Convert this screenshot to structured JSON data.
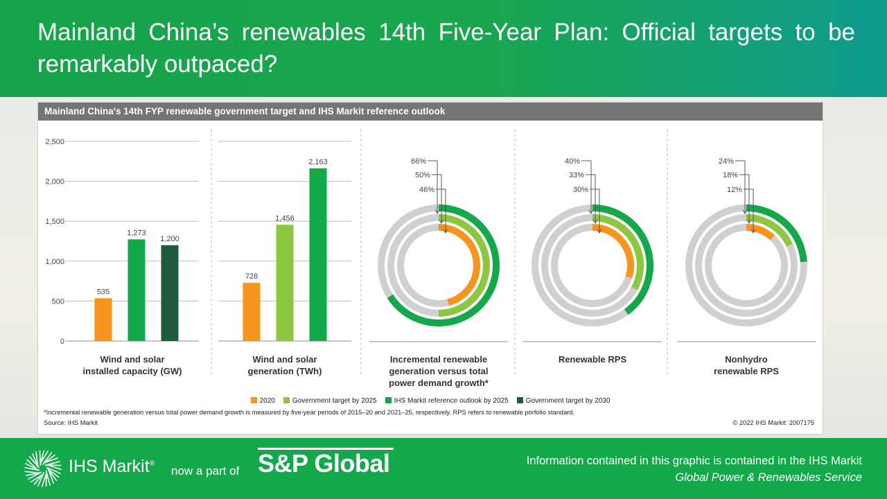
{
  "header": {
    "title": "Mainland China’s renewables 14th Five-Year Plan: Official targets to be remarkably outpaced?"
  },
  "card": {
    "title": "Mainland China's 14th FYP renewable government target and IHS Markit reference outlook",
    "footnote": "*Incremental renewable generation versus total power demand growth is measured by five-year periods of 2015–20 and 2021–25, respectively. RPS refers to renewable porfolio standard.",
    "source": "Source: IHS Markit",
    "copyright": "© 2022 IHS Markit: 2007175"
  },
  "colors": {
    "orange": "#f7941d",
    "lightgreen": "#8dc63f",
    "green": "#13a84a",
    "darkgreen": "#1f5a3e",
    "ringbg": "#d0d0d0"
  },
  "chart_data": {
    "type": "bar",
    "y_ticks": [
      "2,500",
      "2,000",
      "1,500",
      "1,000",
      "500",
      "0"
    ],
    "ylim": [
      0,
      2500
    ],
    "legend": [
      {
        "label": "2020",
        "color": "#f7941d"
      },
      {
        "label": "Government target by 2025",
        "color": "#8dc63f"
      },
      {
        "label": "IHS Markit reference outlook by 2025",
        "color": "#13a84a"
      },
      {
        "label": "Government target by 2030",
        "color": "#1f5a3e"
      }
    ],
    "bar_groups": [
      {
        "label_lines": [
          "Wind and solar",
          "installed capacity (GW)"
        ],
        "bars": [
          {
            "series": "2020",
            "value": 535,
            "label": "535",
            "color": "#f7941d"
          },
          {
            "series": "IHS Markit reference outlook by 2025",
            "value": 1273,
            "label": "1,273",
            "color": "#13a84a"
          },
          {
            "series": "Government target by 2030",
            "value": 1200,
            "label": "1,200",
            "color": "#1f5a3e"
          }
        ]
      },
      {
        "label_lines": [
          "Wind and solar",
          "generation (TWh)"
        ],
        "bars": [
          {
            "series": "2020",
            "value": 728,
            "label": "728",
            "color": "#f7941d"
          },
          {
            "series": "Government target by 2025",
            "value": 1456,
            "label": "1,456",
            "color": "#8dc63f"
          },
          {
            "series": "IHS Markit reference outlook by 2025",
            "value": 2163,
            "label": "2,163",
            "color": "#13a84a"
          }
        ]
      }
    ],
    "donuts": [
      {
        "label_lines": [
          "Incremental renewable",
          "generation versus total",
          "power demand growth*"
        ],
        "rings": [
          {
            "series": "IHS Markit reference outlook by 2025",
            "value": 66,
            "label": "66%",
            "color": "#13a84a"
          },
          {
            "series": "Government target by 2025",
            "value": 50,
            "label": "50%",
            "color": "#8dc63f"
          },
          {
            "series": "2020",
            "value": 46,
            "label": "46%",
            "color": "#f7941d"
          }
        ]
      },
      {
        "label_lines": [
          "Renewable RPS"
        ],
        "rings": [
          {
            "series": "IHS Markit reference outlook by 2025",
            "value": 40,
            "label": "40%",
            "color": "#13a84a"
          },
          {
            "series": "Government target by 2025",
            "value": 33,
            "label": "33%",
            "color": "#8dc63f"
          },
          {
            "series": "2020",
            "value": 30,
            "label": "30%",
            "color": "#f7941d"
          }
        ]
      },
      {
        "label_lines": [
          "Nonhydro",
          "renewable RPS"
        ],
        "rings": [
          {
            "series": "IHS Markit reference outlook by 2025",
            "value": 24,
            "label": "24%",
            "color": "#13a84a"
          },
          {
            "series": "Government target by 2025",
            "value": 18,
            "label": "18%",
            "color": "#8dc63f"
          },
          {
            "series": "2020",
            "value": 12,
            "label": "12%",
            "color": "#f7941d"
          }
        ]
      }
    ]
  },
  "footer": {
    "brand": "IHS Markit",
    "brand_mark": "®",
    "part_of": "now a part of",
    "sp": "S&P Global",
    "info_line1": "Information contained in this graphic is contained in the IHS Markit",
    "info_line2": "Global Power & Renewables Service"
  }
}
